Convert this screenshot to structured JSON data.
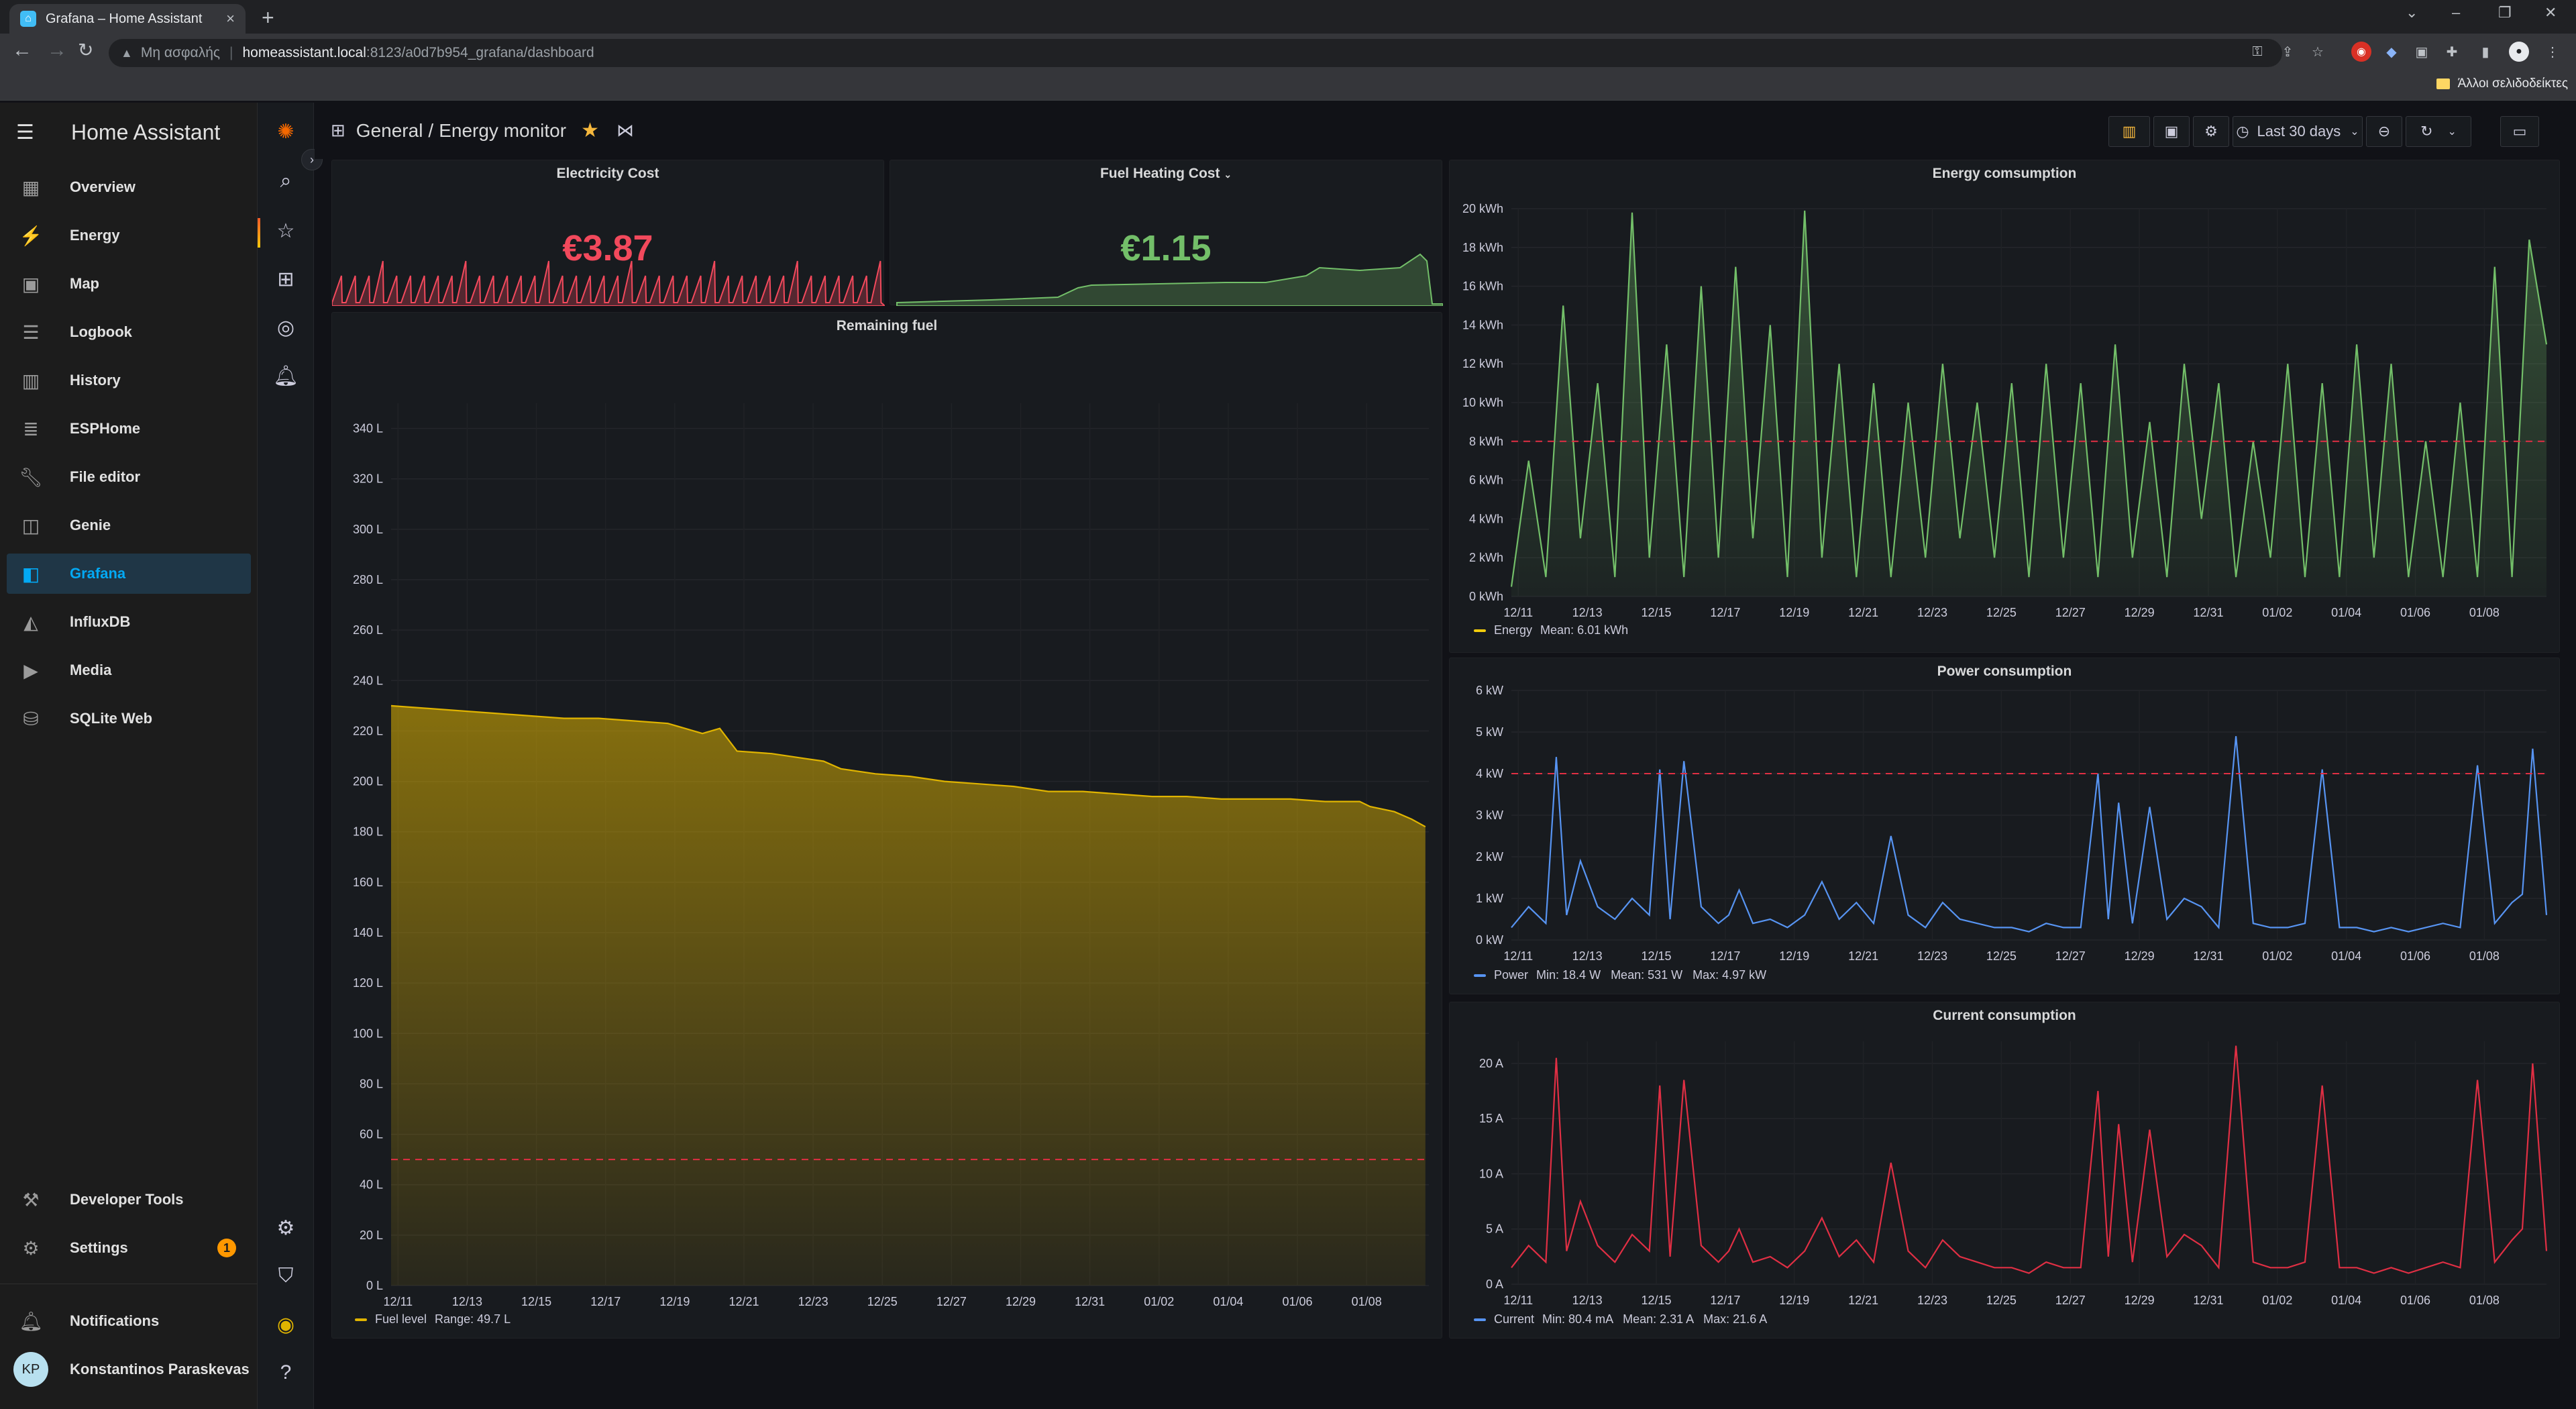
{
  "browser": {
    "tab_title": "Grafana – Home Assistant",
    "new_tab": "+",
    "close_tab": "×",
    "security_label": "Μη ασφαλής",
    "url_host": "homeassistant.local",
    "url_path": ":8123/a0d7b954_grafana/dashboard",
    "bookmark_folder": "Άλλοι σελιδοδείκτες"
  },
  "ha": {
    "title": "Home Assistant",
    "items": [
      {
        "label": "Overview",
        "icon": "overview-icon"
      },
      {
        "label": "Energy",
        "icon": "energy-icon"
      },
      {
        "label": "Map",
        "icon": "map-icon"
      },
      {
        "label": "Logbook",
        "icon": "logbook-icon"
      },
      {
        "label": "History",
        "icon": "history-icon"
      },
      {
        "label": "ESPHome",
        "icon": "esphome-icon"
      },
      {
        "label": "File editor",
        "icon": "wrench-icon"
      },
      {
        "label": "Genie",
        "icon": "genie-icon"
      },
      {
        "label": "Grafana",
        "icon": "grafana-icon"
      },
      {
        "label": "InfluxDB",
        "icon": "influxdb-icon"
      },
      {
        "label": "Media",
        "icon": "media-icon"
      },
      {
        "label": "SQLite Web",
        "icon": "database-icon"
      }
    ],
    "developer_tools": "Developer Tools",
    "settings": "Settings",
    "settings_badge": "1",
    "notifications": "Notifications",
    "user_initials": "KP",
    "user_name": "Konstantinos Paraskevas"
  },
  "grafana": {
    "breadcrumb_folder": "General",
    "breadcrumb_sep": "/",
    "dashboard_title": "Energy monitor",
    "time_range": "Last 30 days"
  },
  "panels": {
    "electricity_title": "Electricity Cost",
    "electricity_value": "€3.87",
    "fuel_cost_title": "Fuel Heating Cost",
    "fuel_cost_value": "€1.15",
    "remaining_title": "Remaining fuel",
    "remaining_legend": "Fuel level",
    "remaining_stats": "Range: 49.7 L",
    "energy_title": "Energy comsumption",
    "energy_legend": "Energy",
    "energy_stats": "Mean: 6.01 kWh",
    "power_title": "Power consumption",
    "power_legend": "Power",
    "power_stats": "Min: 18.4 W   Mean: 531 W   Max: 4.97 kW",
    "current_title": "Current consumption",
    "current_legend": "Current",
    "current_stats": "Min: 80.4 mA   Mean: 2.31 A   Max: 21.6 A"
  },
  "colors": {
    "electricity": "#f2495c",
    "fuel_cost": "#73bf69",
    "fuel": "#e0b400",
    "energy": "#73bf69",
    "power": "#5794f2",
    "current": "#e02f44",
    "threshold": "#e02f44"
  },
  "chart_data": [
    {
      "id": "remaining",
      "type": "area",
      "title": "Remaining fuel",
      "x_ticks": [
        "12/11",
        "12/13",
        "12/15",
        "12/17",
        "12/19",
        "12/21",
        "12/23",
        "12/25",
        "12/27",
        "12/29",
        "12/31",
        "01/02",
        "01/04",
        "01/06",
        "01/08"
      ],
      "y_ticks": [
        "0 L",
        "20 L",
        "40 L",
        "60 L",
        "80 L",
        "100 L",
        "120 L",
        "140 L",
        "160 L",
        "180 L",
        "200 L",
        "220 L",
        "240 L",
        "260 L",
        "280 L",
        "300 L",
        "320 L",
        "340 L"
      ],
      "ylim": [
        0,
        350
      ],
      "threshold": 50,
      "series": [
        {
          "name": "Fuel level",
          "x": [
            0,
            1,
            2,
            3,
            4,
            5,
            6,
            7,
            8,
            9,
            9.5,
            10,
            11,
            12,
            12.5,
            13,
            14,
            15,
            16,
            17,
            18,
            19,
            20,
            21,
            22,
            23,
            24,
            25,
            26,
            27,
            28,
            28.3,
            29,
            29.5,
            29.9
          ],
          "values": [
            230,
            229,
            228,
            227,
            226,
            225,
            225,
            224,
            223,
            219,
            221,
            212,
            211,
            209,
            208,
            205,
            203,
            202,
            200,
            199,
            198,
            196,
            196,
            195,
            194,
            194,
            193,
            193,
            193,
            192,
            192,
            190,
            188,
            185,
            182
          ]
        }
      ]
    },
    {
      "id": "energy",
      "type": "area",
      "title": "Energy comsumption",
      "x_ticks": [
        "12/11",
        "12/13",
        "12/15",
        "12/17",
        "12/19",
        "12/21",
        "12/23",
        "12/25",
        "12/27",
        "12/29",
        "12/31",
        "01/02",
        "01/04",
        "01/06",
        "01/08"
      ],
      "y_ticks": [
        "0 kWh",
        "2 kWh",
        "4 kWh",
        "6 kWh",
        "8 kWh",
        "10 kWh",
        "12 kWh",
        "14 kWh",
        "16 kWh",
        "18 kWh",
        "20 kWh"
      ],
      "ylim": [
        0,
        20
      ],
      "threshold": 8,
      "series": [
        {
          "name": "Energy",
          "x": [
            0,
            0.5,
            1,
            1.5,
            2,
            2.5,
            3,
            3.5,
            4,
            4.5,
            5,
            5.5,
            6,
            6.5,
            7,
            7.5,
            8,
            8.5,
            9,
            9.5,
            10,
            10.5,
            11,
            11.5,
            12,
            12.5,
            13,
            13.5,
            14,
            14.5,
            15,
            15.5,
            16,
            16.5,
            17,
            17.5,
            18,
            18.5,
            19,
            19.5,
            20,
            20.5,
            21,
            21.5,
            22,
            22.5,
            23,
            23.5,
            24,
            24.5,
            25,
            25.5,
            26,
            26.5,
            27,
            27.5,
            28,
            28.5,
            29,
            29.5,
            30
          ],
          "values": [
            0.5,
            7,
            1,
            15,
            3,
            11,
            1,
            19.8,
            2,
            13,
            1,
            16,
            2,
            17,
            3,
            14,
            1,
            19.9,
            2,
            12,
            1,
            11,
            1,
            10,
            2,
            12,
            3,
            10,
            2,
            11,
            1,
            12,
            2,
            11,
            1,
            13,
            2,
            9,
            1,
            12,
            4,
            11,
            1,
            8,
            2,
            12,
            1,
            11,
            1,
            13,
            2,
            12,
            1,
            8,
            1,
            10,
            1,
            17,
            1,
            18.4,
            13
          ]
        }
      ]
    },
    {
      "id": "power",
      "type": "line",
      "title": "Power consumption",
      "x_ticks": [
        "12/11",
        "12/13",
        "12/15",
        "12/17",
        "12/19",
        "12/21",
        "12/23",
        "12/25",
        "12/27",
        "12/29",
        "12/31",
        "01/02",
        "01/04",
        "01/06",
        "01/08"
      ],
      "y_ticks": [
        "0 kW",
        "1 kW",
        "2 kW",
        "3 kW",
        "4 kW",
        "5 kW",
        "6 kW"
      ],
      "ylim": [
        0,
        6
      ],
      "threshold": 4,
      "series": [
        {
          "name": "Power",
          "x": [
            0,
            0.5,
            1,
            1.3,
            1.6,
            2,
            2.5,
            3,
            3.5,
            4,
            4.3,
            4.6,
            5,
            5.5,
            6,
            6.3,
            6.6,
            7,
            7.5,
            8,
            8.5,
            9,
            9.5,
            10,
            10.5,
            11,
            11.5,
            12,
            12.5,
            13,
            13.5,
            14,
            14.5,
            15,
            15.5,
            16,
            16.5,
            17,
            17.3,
            17.6,
            18,
            18.5,
            19,
            19.5,
            20,
            20.5,
            21,
            21.5,
            22,
            22.5,
            23,
            23.5,
            24,
            24.5,
            25,
            25.5,
            26,
            26.5,
            27,
            27.5,
            28,
            28.5,
            29,
            29.3,
            29.6,
            30
          ],
          "values": [
            0.3,
            0.8,
            0.4,
            4.4,
            0.6,
            1.9,
            0.8,
            0.5,
            1.0,
            0.6,
            4.1,
            0.5,
            4.3,
            0.8,
            0.4,
            0.6,
            1.2,
            0.4,
            0.5,
            0.3,
            0.6,
            1.4,
            0.5,
            0.9,
            0.4,
            2.5,
            0.6,
            0.3,
            0.9,
            0.5,
            0.4,
            0.3,
            0.3,
            0.2,
            0.4,
            0.3,
            0.3,
            4.0,
            0.5,
            3.3,
            0.4,
            3.2,
            0.5,
            1.0,
            0.8,
            0.3,
            4.9,
            0.4,
            0.3,
            0.3,
            0.4,
            4.1,
            0.3,
            0.3,
            0.2,
            0.3,
            0.2,
            0.3,
            0.4,
            0.3,
            4.2,
            0.4,
            0.9,
            1.1,
            4.6,
            0.6
          ]
        }
      ]
    },
    {
      "id": "current",
      "type": "line",
      "title": "Current consumption",
      "x_ticks": [
        "12/11",
        "12/13",
        "12/15",
        "12/17",
        "12/19",
        "12/21",
        "12/23",
        "12/25",
        "12/27",
        "12/29",
        "12/31",
        "01/02",
        "01/04",
        "01/06",
        "01/08"
      ],
      "y_ticks": [
        "0 A",
        "5 A",
        "10 A",
        "15 A",
        "20 A"
      ],
      "ylim": [
        0,
        22
      ],
      "series": [
        {
          "name": "Current",
          "x": [
            0,
            0.5,
            1,
            1.3,
            1.6,
            2,
            2.5,
            3,
            3.5,
            4,
            4.3,
            4.6,
            5,
            5.5,
            6,
            6.3,
            6.6,
            7,
            7.5,
            8,
            8.5,
            9,
            9.5,
            10,
            10.5,
            11,
            11.5,
            12,
            12.5,
            13,
            13.5,
            14,
            14.5,
            15,
            15.5,
            16,
            16.5,
            17,
            17.3,
            17.6,
            18,
            18.5,
            19,
            19.5,
            20,
            20.5,
            21,
            21.5,
            22,
            22.5,
            23,
            23.5,
            24,
            24.5,
            25,
            25.5,
            26,
            26.5,
            27,
            27.5,
            28,
            28.5,
            29,
            29.3,
            29.6,
            30
          ],
          "values": [
            1.5,
            3.5,
            2,
            20.5,
            3,
            7.5,
            3.5,
            2,
            4.5,
            3,
            18,
            2.5,
            18.5,
            3.5,
            2,
            3,
            5,
            2,
            2.5,
            1.5,
            3,
            6,
            2.5,
            4,
            2,
            11,
            3,
            1.5,
            4,
            2.5,
            2,
            1.5,
            1.5,
            1,
            2,
            1.5,
            1.5,
            17.5,
            2.5,
            14.5,
            2,
            14,
            2.5,
            4.5,
            3.5,
            1.5,
            21.6,
            2,
            1.5,
            1.5,
            2,
            18,
            1.5,
            1.5,
            1,
            1.5,
            1,
            1.5,
            2,
            1.5,
            18.5,
            2,
            4,
            5,
            20,
            3
          ]
        }
      ]
    }
  ]
}
